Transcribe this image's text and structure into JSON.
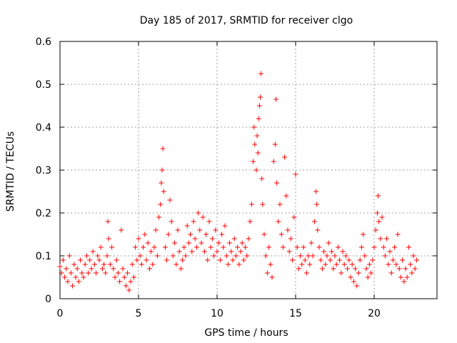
{
  "chart_data": {
    "type": "scatter",
    "title": "Day 185 of 2017, SRMTID for receiver clgo",
    "xlabel": "GPS time / hours",
    "ylabel": "SRMTID / TECUs",
    "xlim": [
      0,
      24
    ],
    "ylim": [
      0,
      0.6
    ],
    "xticks": [
      0,
      5,
      10,
      15,
      20
    ],
    "xtick_labels": [
      "0",
      "5",
      "10",
      "15",
      "20"
    ],
    "yticks": [
      0,
      0.1,
      0.2,
      0.3,
      0.4,
      0.5,
      0.6
    ],
    "ytick_labels": [
      "0",
      "0.1",
      "0.2",
      "0.3",
      "0.4",
      "0.5",
      "0.6"
    ],
    "grid": true,
    "marker": "+",
    "marker_color": "#ff0000",
    "series": [
      {
        "name": "SRMTID",
        "points": [
          [
            0.0,
            0.075
          ],
          [
            0.1,
            0.06
          ],
          [
            0.2,
            0.09
          ],
          [
            0.3,
            0.05
          ],
          [
            0.4,
            0.07
          ],
          [
            0.5,
            0.04
          ],
          [
            0.6,
            0.1
          ],
          [
            0.7,
            0.06
          ],
          [
            0.8,
            0.03
          ],
          [
            0.9,
            0.08
          ],
          [
            1.0,
            0.05
          ],
          [
            1.1,
            0.07
          ],
          [
            1.2,
            0.04
          ],
          [
            1.3,
            0.09
          ],
          [
            1.4,
            0.06
          ],
          [
            1.5,
            0.05
          ],
          [
            1.6,
            0.08
          ],
          [
            1.7,
            0.1
          ],
          [
            1.8,
            0.06
          ],
          [
            1.9,
            0.09
          ],
          [
            2.0,
            0.07
          ],
          [
            2.1,
            0.11
          ],
          [
            2.2,
            0.08
          ],
          [
            2.3,
            0.06
          ],
          [
            2.4,
            0.1
          ],
          [
            2.5,
            0.09
          ],
          [
            2.6,
            0.12
          ],
          [
            2.7,
            0.07
          ],
          [
            2.8,
            0.08
          ],
          [
            2.9,
            0.06
          ],
          [
            3.0,
            0.1
          ],
          [
            3.05,
            0.18
          ],
          [
            3.1,
            0.14
          ],
          [
            3.2,
            0.08
          ],
          [
            3.3,
            0.12
          ],
          [
            3.4,
            0.07
          ],
          [
            3.5,
            0.05
          ],
          [
            3.6,
            0.09
          ],
          [
            3.7,
            0.06
          ],
          [
            3.8,
            0.04
          ],
          [
            3.9,
            0.16
          ],
          [
            4.0,
            0.07
          ],
          [
            4.1,
            0.05
          ],
          [
            4.2,
            0.03
          ],
          [
            4.3,
            0.06
          ],
          [
            4.4,
            0.02
          ],
          [
            4.5,
            0.04
          ],
          [
            4.6,
            0.08
          ],
          [
            4.7,
            0.05
          ],
          [
            4.8,
            0.12
          ],
          [
            4.9,
            0.09
          ],
          [
            5.0,
            0.14
          ],
          [
            5.1,
            0.1
          ],
          [
            5.2,
            0.08
          ],
          [
            5.3,
            0.12
          ],
          [
            5.4,
            0.15
          ],
          [
            5.5,
            0.09
          ],
          [
            5.6,
            0.13
          ],
          [
            5.7,
            0.07
          ],
          [
            5.8,
            0.11
          ],
          [
            5.9,
            0.08
          ],
          [
            6.0,
            0.12
          ],
          [
            6.1,
            0.16
          ],
          [
            6.2,
            0.1
          ],
          [
            6.3,
            0.19
          ],
          [
            6.4,
            0.22
          ],
          [
            6.45,
            0.27
          ],
          [
            6.5,
            0.3
          ],
          [
            6.55,
            0.35
          ],
          [
            6.6,
            0.25
          ],
          [
            6.7,
            0.12
          ],
          [
            6.8,
            0.09
          ],
          [
            6.9,
            0.15
          ],
          [
            7.0,
            0.23
          ],
          [
            7.1,
            0.18
          ],
          [
            7.2,
            0.1
          ],
          [
            7.3,
            0.13
          ],
          [
            7.4,
            0.08
          ],
          [
            7.5,
            0.16
          ],
          [
            7.6,
            0.11
          ],
          [
            7.7,
            0.07
          ],
          [
            7.8,
            0.09
          ],
          [
            7.9,
            0.12
          ],
          [
            8.0,
            0.1
          ],
          [
            8.1,
            0.17
          ],
          [
            8.2,
            0.13
          ],
          [
            8.3,
            0.15
          ],
          [
            8.4,
            0.11
          ],
          [
            8.5,
            0.18
          ],
          [
            8.6,
            0.14
          ],
          [
            8.7,
            0.12
          ],
          [
            8.8,
            0.2
          ],
          [
            8.9,
            0.16
          ],
          [
            9.0,
            0.13
          ],
          [
            9.1,
            0.19
          ],
          [
            9.2,
            0.11
          ],
          [
            9.3,
            0.15
          ],
          [
            9.4,
            0.09
          ],
          [
            9.5,
            0.18
          ],
          [
            9.6,
            0.12
          ],
          [
            9.7,
            0.14
          ],
          [
            9.8,
            0.1
          ],
          [
            9.9,
            0.16
          ],
          [
            10.0,
            0.11
          ],
          [
            10.1,
            0.13
          ],
          [
            10.2,
            0.09
          ],
          [
            10.3,
            0.15
          ],
          [
            10.4,
            0.12
          ],
          [
            10.5,
            0.17
          ],
          [
            10.6,
            0.1
          ],
          [
            10.7,
            0.08
          ],
          [
            10.8,
            0.13
          ],
          [
            10.9,
            0.11
          ],
          [
            11.0,
            0.09
          ],
          [
            11.1,
            0.14
          ],
          [
            11.2,
            0.1
          ],
          [
            11.3,
            0.12
          ],
          [
            11.4,
            0.08
          ],
          [
            11.5,
            0.11
          ],
          [
            11.6,
            0.13
          ],
          [
            11.7,
            0.09
          ],
          [
            11.8,
            0.12
          ],
          [
            11.9,
            0.1
          ],
          [
            12.0,
            0.14
          ],
          [
            12.1,
            0.18
          ],
          [
            12.2,
            0.22
          ],
          [
            12.3,
            0.32
          ],
          [
            12.35,
            0.4
          ],
          [
            12.4,
            0.36
          ],
          [
            12.5,
            0.3
          ],
          [
            12.55,
            0.38
          ],
          [
            12.6,
            0.34
          ],
          [
            12.65,
            0.42
          ],
          [
            12.7,
            0.45
          ],
          [
            12.75,
            0.47
          ],
          [
            12.8,
            0.525
          ],
          [
            12.85,
            0.28
          ],
          [
            12.9,
            0.22
          ],
          [
            13.0,
            0.15
          ],
          [
            13.1,
            0.1
          ],
          [
            13.2,
            0.06
          ],
          [
            13.3,
            0.12
          ],
          [
            13.4,
            0.08
          ],
          [
            13.5,
            0.05
          ],
          [
            13.6,
            0.32
          ],
          [
            13.7,
            0.36
          ],
          [
            13.75,
            0.465
          ],
          [
            13.8,
            0.27
          ],
          [
            13.9,
            0.18
          ],
          [
            14.0,
            0.22
          ],
          [
            14.1,
            0.15
          ],
          [
            14.2,
            0.12
          ],
          [
            14.3,
            0.33
          ],
          [
            14.4,
            0.24
          ],
          [
            14.5,
            0.16
          ],
          [
            14.6,
            0.11
          ],
          [
            14.7,
            0.14
          ],
          [
            14.8,
            0.09
          ],
          [
            14.9,
            0.19
          ],
          [
            15.0,
            0.29
          ],
          [
            15.1,
            0.12
          ],
          [
            15.2,
            0.07
          ],
          [
            15.3,
            0.1
          ],
          [
            15.4,
            0.08
          ],
          [
            15.5,
            0.12
          ],
          [
            15.6,
            0.09
          ],
          [
            15.7,
            0.06
          ],
          [
            15.8,
            0.1
          ],
          [
            15.9,
            0.08
          ],
          [
            16.0,
            0.13
          ],
          [
            16.1,
            0.1
          ],
          [
            16.2,
            0.18
          ],
          [
            16.3,
            0.25
          ],
          [
            16.35,
            0.22
          ],
          [
            16.4,
            0.16
          ],
          [
            16.5,
            0.12
          ],
          [
            16.6,
            0.09
          ],
          [
            16.7,
            0.07
          ],
          [
            16.8,
            0.11
          ],
          [
            16.9,
            0.08
          ],
          [
            17.0,
            0.1
          ],
          [
            17.1,
            0.13
          ],
          [
            17.2,
            0.09
          ],
          [
            17.3,
            0.11
          ],
          [
            17.4,
            0.07
          ],
          [
            17.5,
            0.1
          ],
          [
            17.6,
            0.08
          ],
          [
            17.7,
            0.12
          ],
          [
            17.8,
            0.09
          ],
          [
            17.9,
            0.06
          ],
          [
            18.0,
            0.11
          ],
          [
            18.1,
            0.08
          ],
          [
            18.2,
            0.1
          ],
          [
            18.3,
            0.07
          ],
          [
            18.4,
            0.09
          ],
          [
            18.5,
            0.05
          ],
          [
            18.6,
            0.08
          ],
          [
            18.7,
            0.04
          ],
          [
            18.8,
            0.07
          ],
          [
            18.9,
            0.03
          ],
          [
            19.0,
            0.06
          ],
          [
            19.1,
            0.09
          ],
          [
            19.2,
            0.12
          ],
          [
            19.3,
            0.15
          ],
          [
            19.4,
            0.1
          ],
          [
            19.5,
            0.07
          ],
          [
            19.6,
            0.05
          ],
          [
            19.7,
            0.08
          ],
          [
            19.8,
            0.06
          ],
          [
            19.9,
            0.09
          ],
          [
            20.0,
            0.12
          ],
          [
            20.1,
            0.16
          ],
          [
            20.2,
            0.2
          ],
          [
            20.25,
            0.24
          ],
          [
            20.3,
            0.18
          ],
          [
            20.4,
            0.14
          ],
          [
            20.5,
            0.19
          ],
          [
            20.6,
            0.12
          ],
          [
            20.7,
            0.1
          ],
          [
            20.8,
            0.14
          ],
          [
            20.9,
            0.08
          ],
          [
            21.0,
            0.11
          ],
          [
            21.1,
            0.06
          ],
          [
            21.2,
            0.09
          ],
          [
            21.3,
            0.12
          ],
          [
            21.4,
            0.08
          ],
          [
            21.5,
            0.15
          ],
          [
            21.6,
            0.07
          ],
          [
            21.7,
            0.05
          ],
          [
            21.8,
            0.09
          ],
          [
            21.9,
            0.04
          ],
          [
            22.0,
            0.07
          ],
          [
            22.1,
            0.05
          ],
          [
            22.2,
            0.12
          ],
          [
            22.3,
            0.08
          ],
          [
            22.4,
            0.06
          ],
          [
            22.5,
            0.1
          ],
          [
            22.6,
            0.07
          ],
          [
            22.7,
            0.09
          ]
        ]
      }
    ]
  }
}
